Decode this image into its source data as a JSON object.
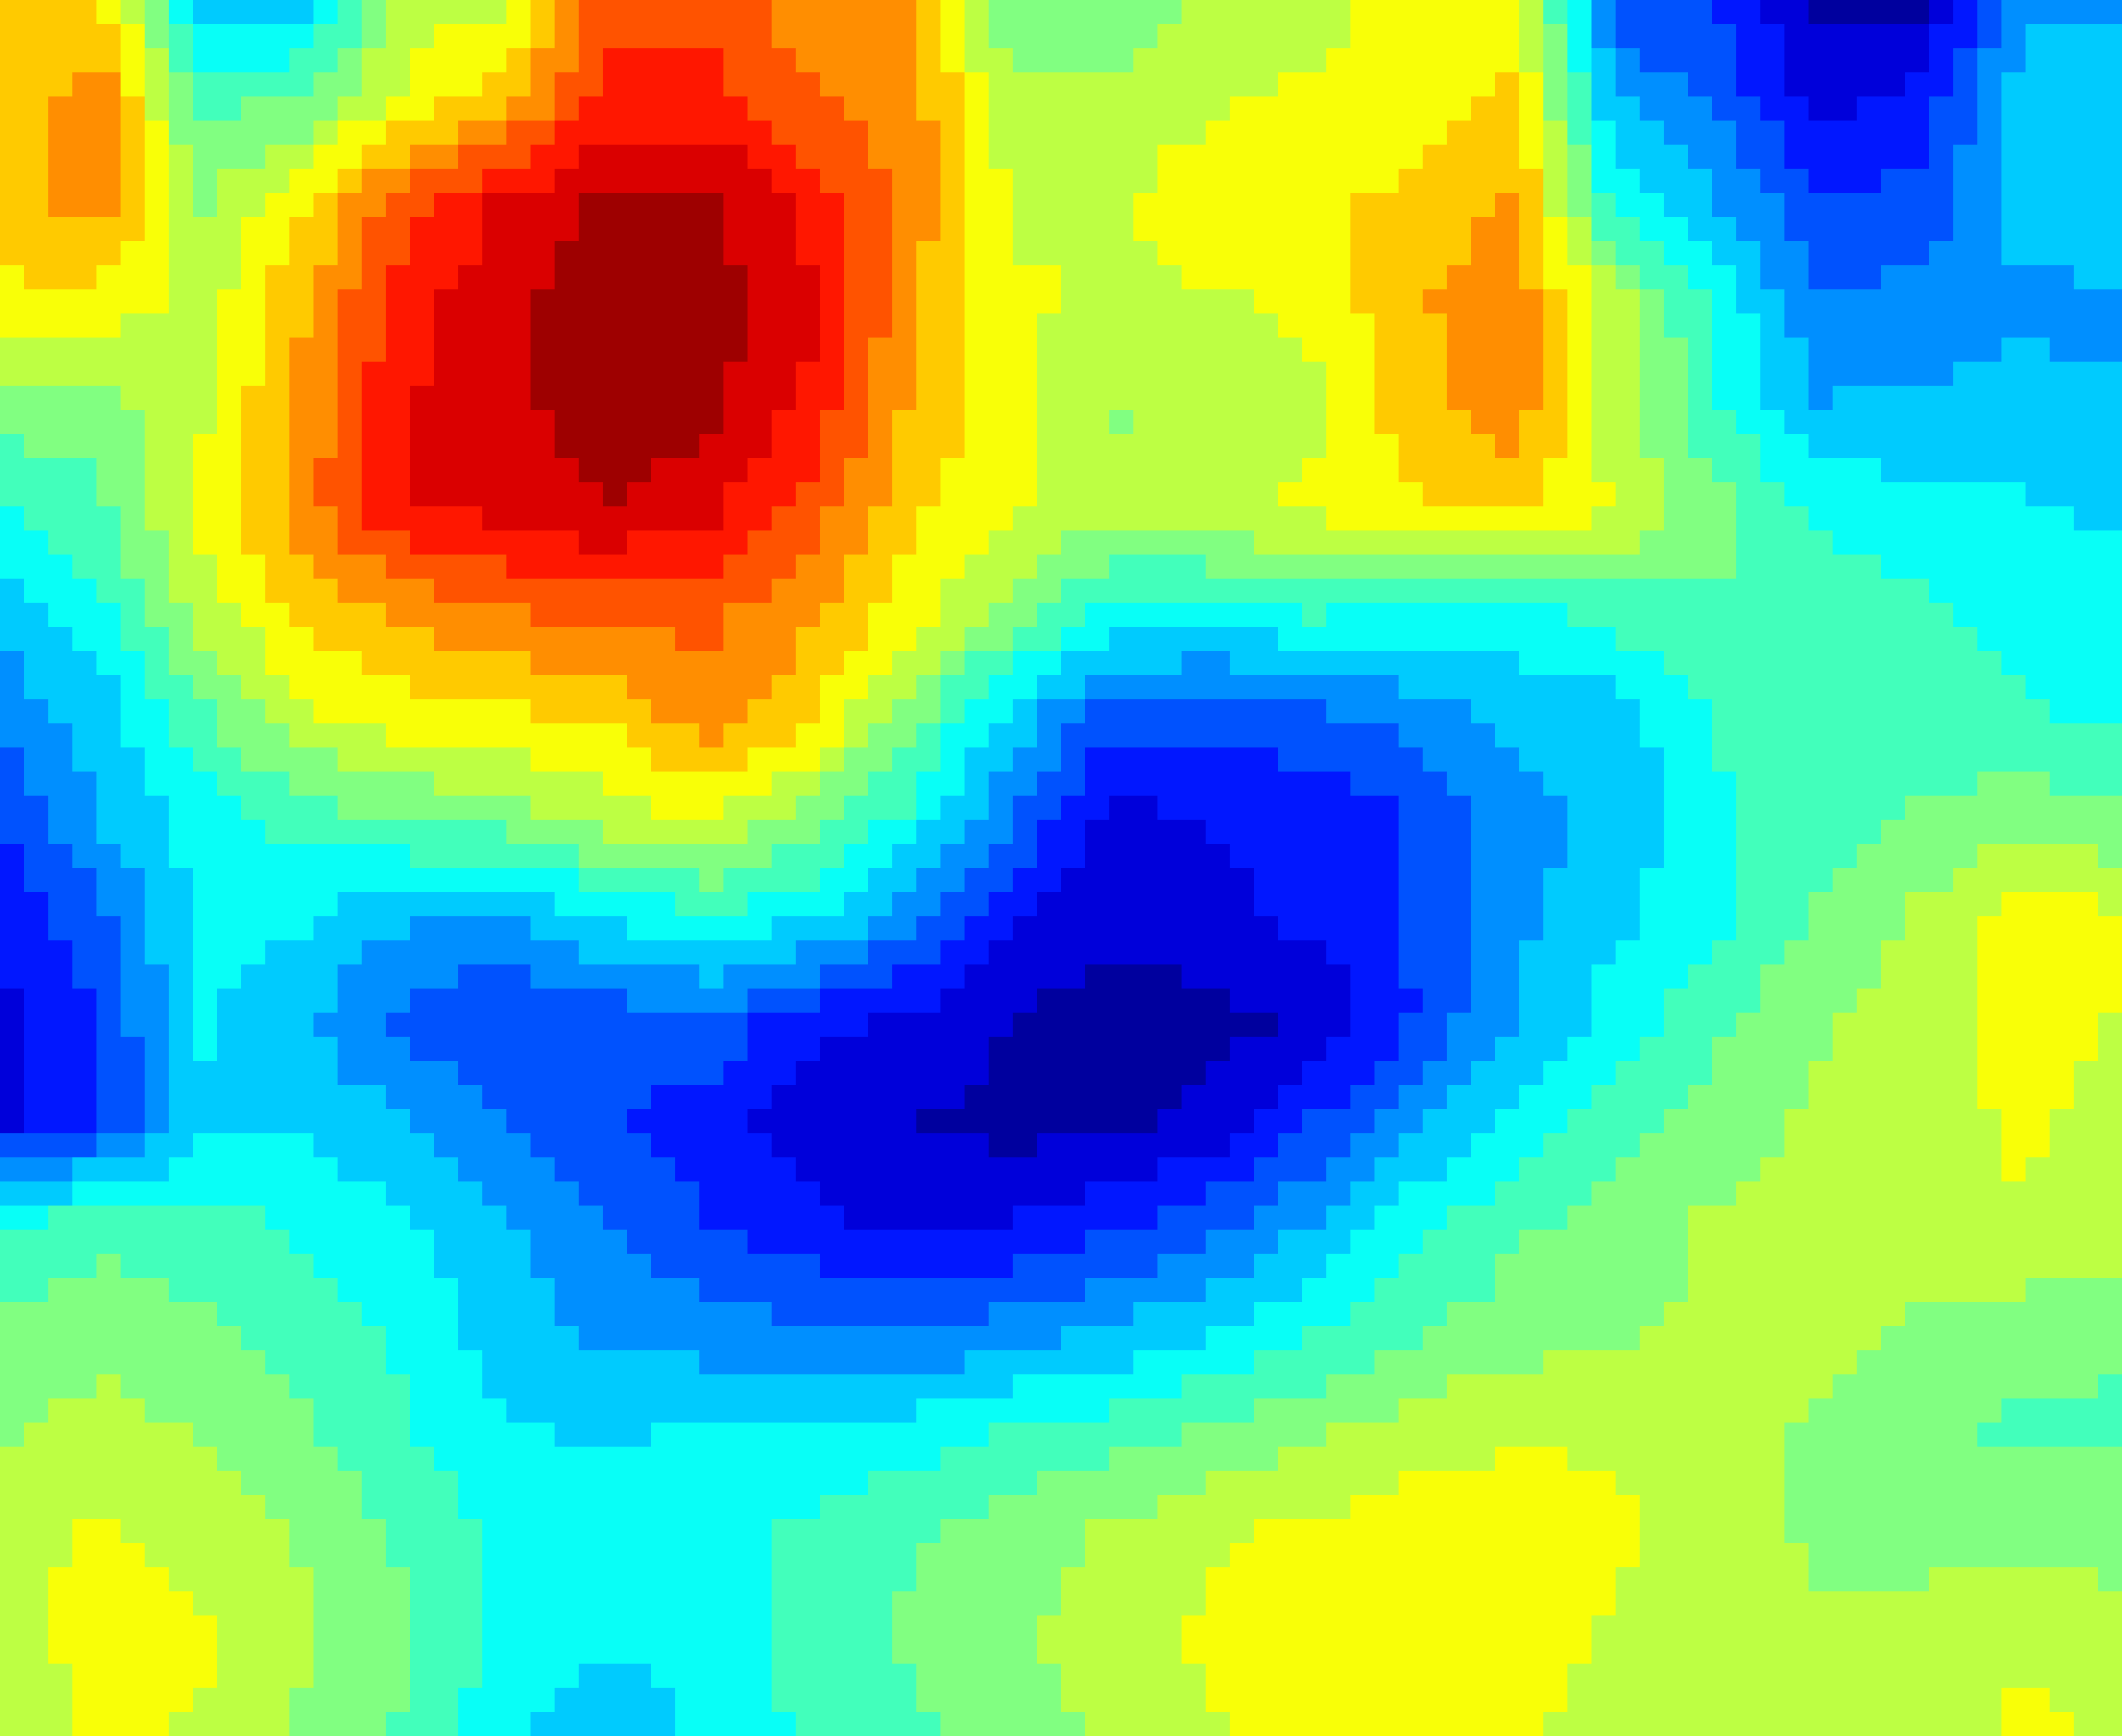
{
  "chart_data": {
    "type": "heatmap",
    "style": "filled contour",
    "colormap": "jet",
    "title": "",
    "xlabel": "",
    "ylabel": "",
    "axes_visible": false,
    "grid": false,
    "legend": "none",
    "colorbar": false,
    "cols": 22,
    "rows": 18,
    "value_range": [
      0,
      1
    ],
    "levels": 17,
    "values": [
      [
        0.66,
        0.66,
        0.32,
        0.32,
        0.56,
        0.56,
        0.8,
        0.8,
        0.72,
        0.72,
        0.46,
        0.46,
        0.56,
        0.56,
        0.62,
        0.62,
        0.18,
        0.18,
        0.04,
        0.04,
        0.28,
        0.28
      ],
      [
        0.66,
        0.75,
        0.45,
        0.48,
        0.6,
        0.7,
        0.84,
        0.85,
        0.78,
        0.74,
        0.55,
        0.56,
        0.58,
        0.6,
        0.62,
        0.66,
        0.3,
        0.22,
        0.1,
        0.14,
        0.32,
        0.34
      ],
      [
        0.66,
        0.74,
        0.52,
        0.64,
        0.8,
        0.9,
        0.95,
        0.96,
        0.86,
        0.74,
        0.58,
        0.58,
        0.62,
        0.64,
        0.66,
        0.72,
        0.38,
        0.3,
        0.18,
        0.2,
        0.32,
        0.34
      ],
      [
        0.64,
        0.62,
        0.56,
        0.7,
        0.86,
        0.92,
        1.0,
        0.97,
        0.9,
        0.72,
        0.6,
        0.58,
        0.58,
        0.6,
        0.7,
        0.74,
        0.56,
        0.4,
        0.24,
        0.26,
        0.28,
        0.28
      ],
      [
        0.5,
        0.5,
        0.58,
        0.72,
        0.88,
        0.92,
        0.98,
        0.96,
        0.86,
        0.7,
        0.6,
        0.52,
        0.56,
        0.58,
        0.68,
        0.74,
        0.56,
        0.42,
        0.3,
        0.3,
        0.32,
        0.3
      ],
      [
        0.4,
        0.46,
        0.6,
        0.74,
        0.88,
        0.9,
        0.94,
        0.9,
        0.8,
        0.66,
        0.6,
        0.54,
        0.58,
        0.6,
        0.64,
        0.66,
        0.58,
        0.5,
        0.4,
        0.38,
        0.36,
        0.34
      ],
      [
        0.3,
        0.4,
        0.56,
        0.66,
        0.72,
        0.76,
        0.78,
        0.78,
        0.72,
        0.62,
        0.5,
        0.4,
        0.38,
        0.42,
        0.4,
        0.38,
        0.44,
        0.46,
        0.44,
        0.42,
        0.4,
        0.38
      ],
      [
        0.26,
        0.32,
        0.46,
        0.58,
        0.62,
        0.64,
        0.66,
        0.74,
        0.66,
        0.5,
        0.34,
        0.2,
        0.2,
        0.22,
        0.26,
        0.32,
        0.32,
        0.42,
        0.44,
        0.44,
        0.42,
        0.4
      ],
      [
        0.18,
        0.3,
        0.38,
        0.44,
        0.48,
        0.5,
        0.56,
        0.6,
        0.5,
        0.4,
        0.24,
        0.1,
        0.12,
        0.14,
        0.18,
        0.26,
        0.32,
        0.4,
        0.44,
        0.48,
        0.5,
        0.48
      ],
      [
        0.12,
        0.22,
        0.38,
        0.36,
        0.3,
        0.28,
        0.36,
        0.4,
        0.36,
        0.26,
        0.12,
        0.08,
        0.1,
        0.14,
        0.18,
        0.28,
        0.34,
        0.4,
        0.48,
        0.54,
        0.62,
        0.6
      ],
      [
        0.1,
        0.18,
        0.36,
        0.3,
        0.22,
        0.18,
        0.2,
        0.22,
        0.14,
        0.1,
        0.06,
        0.02,
        0.04,
        0.06,
        0.18,
        0.3,
        0.38,
        0.46,
        0.52,
        0.56,
        0.62,
        0.58
      ],
      [
        0.1,
        0.18,
        0.34,
        0.34,
        0.3,
        0.24,
        0.18,
        0.14,
        0.08,
        0.06,
        0.04,
        0.04,
        0.08,
        0.18,
        0.28,
        0.38,
        0.44,
        0.5,
        0.54,
        0.56,
        0.6,
        0.56
      ],
      [
        0.42,
        0.46,
        0.44,
        0.4,
        0.36,
        0.3,
        0.24,
        0.18,
        0.14,
        0.1,
        0.12,
        0.16,
        0.22,
        0.3,
        0.4,
        0.46,
        0.5,
        0.54,
        0.56,
        0.56,
        0.58,
        0.56
      ],
      [
        0.48,
        0.5,
        0.48,
        0.44,
        0.4,
        0.32,
        0.28,
        0.26,
        0.24,
        0.22,
        0.26,
        0.3,
        0.34,
        0.4,
        0.46,
        0.5,
        0.52,
        0.54,
        0.56,
        0.52,
        0.5,
        0.48
      ],
      [
        0.52,
        0.56,
        0.52,
        0.48,
        0.42,
        0.36,
        0.34,
        0.36,
        0.36,
        0.38,
        0.42,
        0.44,
        0.48,
        0.52,
        0.56,
        0.58,
        0.58,
        0.56,
        0.52,
        0.48,
        0.46,
        0.46
      ],
      [
        0.56,
        0.6,
        0.56,
        0.52,
        0.46,
        0.4,
        0.38,
        0.4,
        0.42,
        0.46,
        0.5,
        0.54,
        0.58,
        0.6,
        0.62,
        0.62,
        0.6,
        0.56,
        0.52,
        0.5,
        0.5,
        0.5
      ],
      [
        0.56,
        0.62,
        0.6,
        0.54,
        0.48,
        0.4,
        0.36,
        0.38,
        0.44,
        0.48,
        0.52,
        0.56,
        0.6,
        0.62,
        0.64,
        0.62,
        0.58,
        0.56,
        0.54,
        0.56,
        0.58,
        0.56
      ],
      [
        0.54,
        0.6,
        0.58,
        0.52,
        0.46,
        0.36,
        0.32,
        0.36,
        0.42,
        0.46,
        0.5,
        0.54,
        0.58,
        0.62,
        0.64,
        0.6,
        0.56,
        0.54,
        0.54,
        0.56,
        0.6,
        0.58
      ]
    ]
  }
}
